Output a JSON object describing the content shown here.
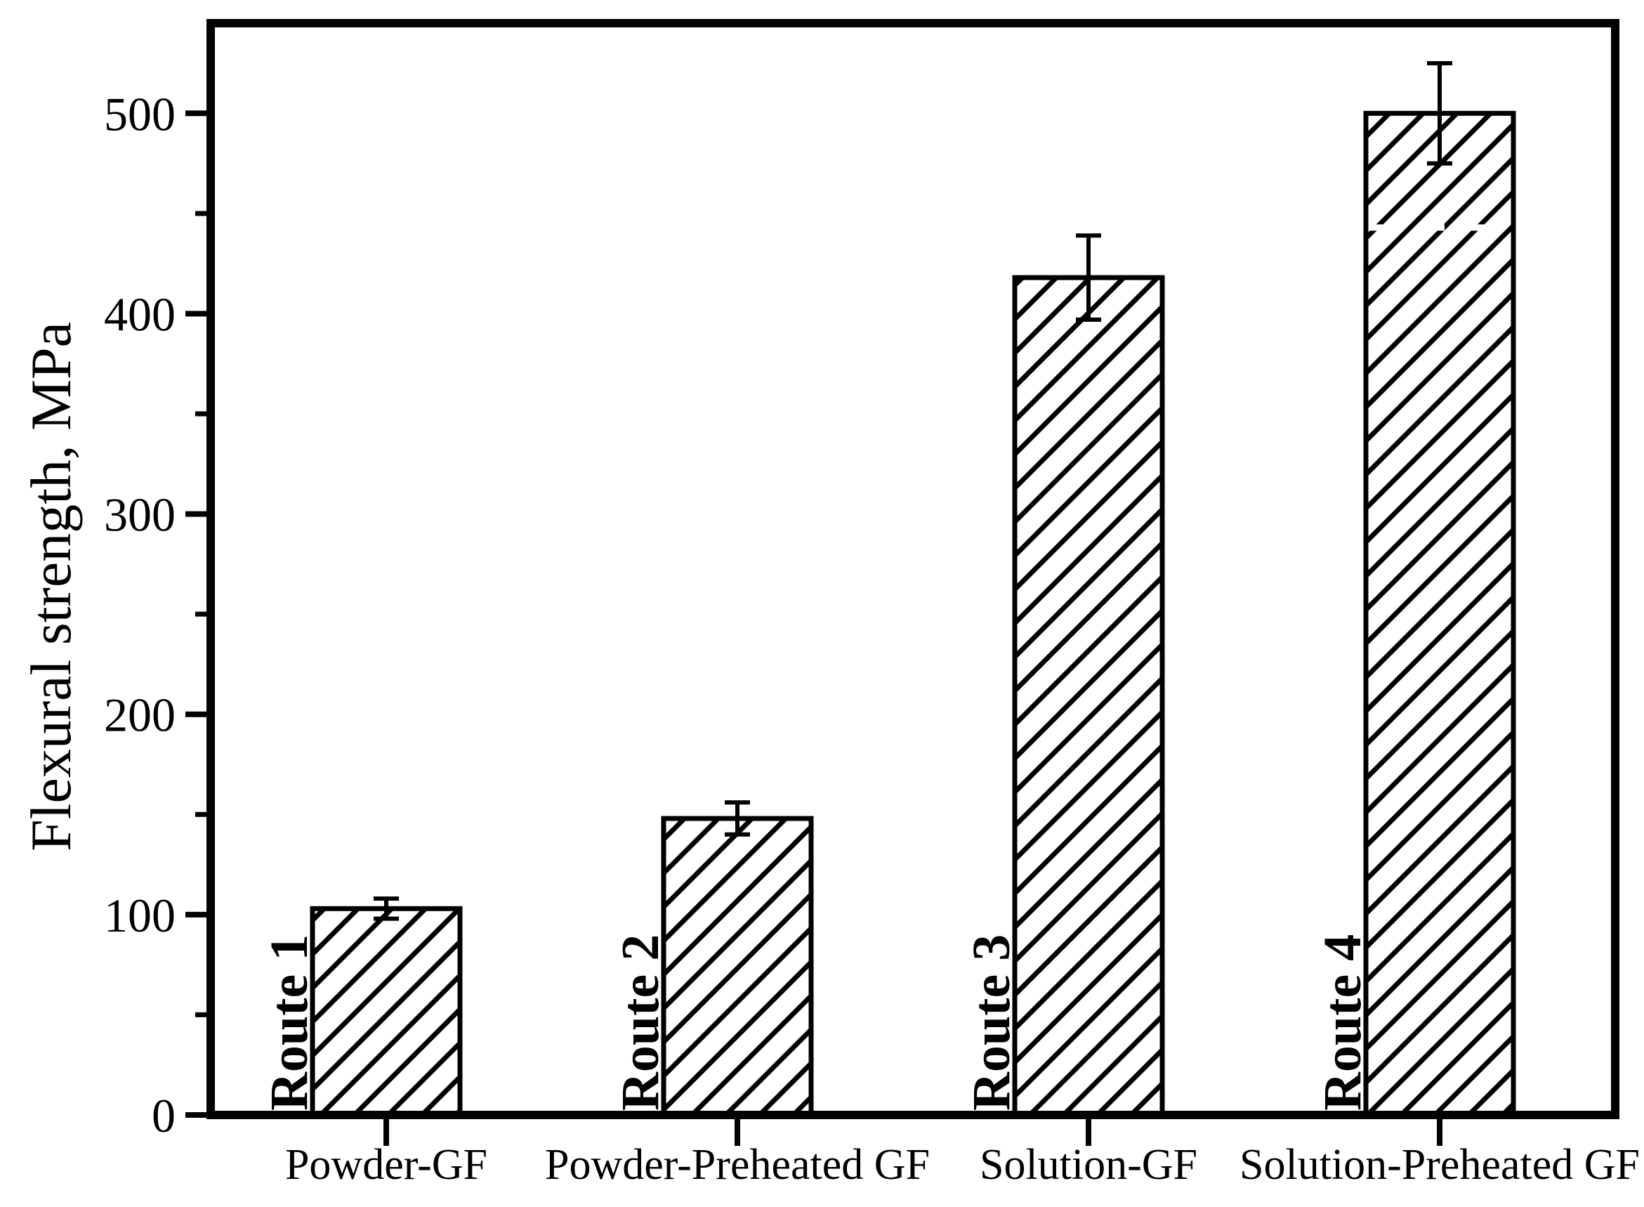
{
  "figure": {
    "background_color": "#ffffff",
    "ink_color": "#000000"
  },
  "chart_data": {
    "type": "bar",
    "title": "",
    "xlabel": "",
    "ylabel": "Flexural strength, MPa",
    "ylim": [
      0,
      545
    ],
    "y_major_ticks": [
      0,
      100,
      200,
      300,
      400,
      500
    ],
    "y_tick_labels": [
      "0",
      "100",
      "200",
      "300",
      "400",
      "500"
    ],
    "y_minor_ticks": [
      50,
      150,
      250,
      350,
      450
    ],
    "grid": "off",
    "legend": "none",
    "frame": "full-box",
    "hatch_style": "forward-diagonal",
    "categories": [
      "Powder-GF",
      "Powder-Preheated GF",
      "Solution-GF",
      "Solution-Preheated GF"
    ],
    "bar_labels": [
      "Route 1",
      "Route 2",
      "Route 3",
      "Route 4"
    ],
    "series": [
      {
        "name": "Flexural strength",
        "values": [
          103,
          148,
          418,
          500
        ],
        "errors": [
          5,
          8,
          21,
          25
        ]
      }
    ],
    "reference_line": {
      "value": 443,
      "bar_index": 3,
      "style": "dashed",
      "color": "#ffffff"
    }
  }
}
